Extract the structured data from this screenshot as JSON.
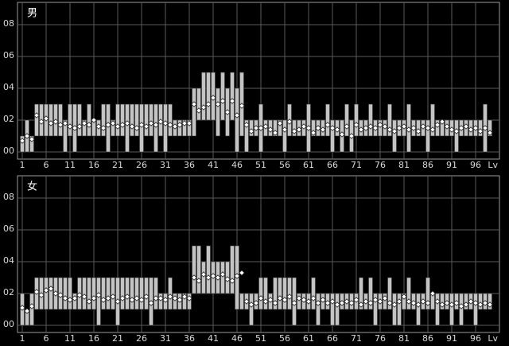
{
  "chart_data": [
    {
      "type": "range",
      "title": "男",
      "x_label": "Lv",
      "bar_color": "#c4c4c4",
      "marker_color": "#ffffff",
      "grid": true,
      "xlim": [
        0,
        101
      ],
      "xticks": [
        1,
        6,
        11,
        16,
        21,
        26,
        31,
        36,
        41,
        46,
        51,
        56,
        61,
        66,
        71,
        76,
        81,
        86,
        91,
        96
      ],
      "ylim": [
        0,
        9
      ],
      "yticks": [
        {
          "value": 0,
          "label": "00"
        },
        {
          "value": 2,
          "label": "02"
        },
        {
          "value": 4,
          "label": "04"
        },
        {
          "value": 6,
          "label": "06"
        },
        {
          "value": 8,
          "label": "08"
        }
      ],
      "x": [
        1,
        2,
        3,
        4,
        5,
        6,
        7,
        8,
        9,
        10,
        11,
        12,
        13,
        14,
        15,
        16,
        17,
        18,
        19,
        20,
        21,
        22,
        23,
        24,
        25,
        26,
        27,
        28,
        29,
        30,
        31,
        32,
        33,
        34,
        35,
        36,
        37,
        38,
        39,
        40,
        41,
        42,
        43,
        44,
        45,
        46,
        47,
        48,
        49,
        50,
        51,
        52,
        53,
        54,
        55,
        56,
        57,
        58,
        59,
        60,
        61,
        62,
        63,
        64,
        65,
        66,
        67,
        68,
        69,
        70,
        71,
        72,
        73,
        74,
        75,
        76,
        77,
        78,
        79,
        80,
        81,
        82,
        83,
        84,
        85,
        86,
        87,
        88,
        89,
        90,
        91,
        92,
        93,
        94,
        95,
        96,
        97,
        98,
        99
      ],
      "low": [
        0,
        0,
        0,
        1,
        1,
        1,
        1,
        1,
        1,
        0,
        1,
        0,
        1,
        1,
        1,
        1,
        1,
        1,
        0,
        1,
        1,
        1,
        0,
        1,
        1,
        0,
        1,
        1,
        0,
        1,
        0,
        1,
        1,
        1,
        1,
        1,
        1,
        2,
        2,
        2,
        2,
        1,
        2,
        1,
        2,
        0,
        1,
        0,
        1,
        1,
        0,
        1,
        1,
        1,
        1,
        0,
        1,
        1,
        1,
        1,
        0,
        1,
        1,
        1,
        1,
        0,
        1,
        0,
        1,
        0,
        1,
        1,
        1,
        1,
        1,
        1,
        1,
        1,
        0,
        1,
        1,
        0,
        1,
        1,
        1,
        0,
        1,
        1,
        1,
        1,
        1,
        0,
        1,
        1,
        1,
        1,
        1,
        0,
        1
      ],
      "high": [
        1,
        2,
        1,
        3,
        3,
        3,
        3,
        3,
        3,
        2,
        3,
        3,
        3,
        2,
        3,
        2,
        2,
        3,
        3,
        2,
        3,
        3,
        3,
        3,
        3,
        3,
        3,
        3,
        3,
        3,
        3,
        3,
        2,
        2,
        2,
        2,
        4,
        4,
        5,
        5,
        5,
        4,
        5,
        4,
        5,
        4,
        5,
        2,
        2,
        2,
        3,
        2,
        2,
        2,
        2,
        2,
        3,
        2,
        2,
        2,
        3,
        2,
        2,
        2,
        3,
        2,
        2,
        2,
        3,
        2,
        3,
        2,
        2,
        3,
        2,
        2,
        2,
        3,
        2,
        2,
        2,
        3,
        2,
        2,
        2,
        2,
        3,
        2,
        2,
        2,
        2,
        2,
        2,
        2,
        2,
        2,
        2,
        3,
        2
      ],
      "values": [
        0.7,
        1,
        0.8,
        2.3,
        1.9,
        2.1,
        1.8,
        1.9,
        1.7,
        1.8,
        1.6,
        1.5,
        1.6,
        1.8,
        1.7,
        2.0,
        1.6,
        1.5,
        1.7,
        1.8,
        1.6,
        1.7,
        1.8,
        1.6,
        1.5,
        1.7,
        1.6,
        1.8,
        1.7,
        1.9,
        1.8,
        1.7,
        1.6,
        1.7,
        1.8,
        1.8,
        3.0,
        2.6,
        2.8,
        3.0,
        3.4,
        3.0,
        3.2,
        2.5,
        3.2,
        2.3,
        2.9,
        1.7,
        1.3,
        1.5,
        1.5,
        1.6,
        1.4,
        1.2,
        1.8,
        1.4,
        1.9,
        1.3,
        1.4,
        1.6,
        1.5,
        1.2,
        1.5,
        1.4,
        1.7,
        1.5,
        1.4,
        1.1,
        1.6,
        1.0,
        1.7,
        1.4,
        1.5,
        1.6,
        1.5,
        1.7,
        1.6,
        1.4,
        1.3,
        1.5,
        1.6,
        1.4,
        1.5,
        1.3,
        1.6,
        1.5,
        1.4,
        1.7,
        1.9,
        1.6,
        1.4,
        1.3,
        1.5,
        1.6,
        1.4,
        1.5,
        1.3,
        1.5,
        1.2
      ]
    },
    {
      "type": "range",
      "title": "女",
      "x_label": "Lv",
      "bar_color": "#c4c4c4",
      "marker_color": "#ffffff",
      "grid": true,
      "xlim": [
        0,
        101
      ],
      "xticks": [
        1,
        6,
        11,
        16,
        21,
        26,
        31,
        36,
        41,
        46,
        51,
        56,
        61,
        66,
        71,
        76,
        81,
        86,
        91,
        96
      ],
      "ylim": [
        0,
        9
      ],
      "yticks": [
        {
          "value": 0,
          "label": "00"
        },
        {
          "value": 2,
          "label": "02"
        },
        {
          "value": 4,
          "label": "04"
        },
        {
          "value": 6,
          "label": "06"
        },
        {
          "value": 8,
          "label": "08"
        }
      ],
      "x": [
        1,
        2,
        3,
        4,
        5,
        6,
        7,
        8,
        9,
        10,
        11,
        12,
        13,
        14,
        15,
        16,
        17,
        18,
        19,
        20,
        21,
        22,
        23,
        24,
        25,
        26,
        27,
        28,
        29,
        30,
        31,
        32,
        33,
        34,
        35,
        36,
        37,
        38,
        39,
        40,
        41,
        42,
        43,
        44,
        45,
        46,
        47,
        48,
        49,
        50,
        51,
        52,
        53,
        54,
        55,
        56,
        57,
        58,
        59,
        60,
        61,
        62,
        63,
        64,
        65,
        66,
        67,
        68,
        69,
        70,
        71,
        72,
        73,
        74,
        75,
        76,
        77,
        78,
        79,
        80,
        81,
        82,
        83,
        84,
        85,
        86,
        87,
        88,
        89,
        90,
        91,
        92,
        93,
        94,
        95,
        96,
        97,
        98,
        99
      ],
      "low": [
        0,
        0,
        0,
        1,
        1,
        1,
        1,
        1,
        1,
        1,
        1,
        1,
        1,
        1,
        1,
        1,
        0,
        1,
        1,
        1,
        0,
        1,
        1,
        1,
        1,
        1,
        1,
        0,
        1,
        1,
        1,
        1,
        1,
        1,
        1,
        1,
        2,
        2,
        2,
        2,
        2,
        2,
        2,
        2,
        2,
        1,
        1,
        1,
        0,
        1,
        1,
        1,
        1,
        1,
        1,
        1,
        1,
        0,
        1,
        1,
        1,
        1,
        0,
        1,
        1,
        0,
        0,
        1,
        1,
        1,
        1,
        1,
        1,
        1,
        0,
        1,
        1,
        1,
        0,
        0,
        1,
        1,
        1,
        0,
        1,
        1,
        1,
        0,
        1,
        1,
        0,
        1,
        0,
        1,
        1,
        0,
        1,
        1,
        1
      ],
      "high": [
        2,
        1,
        2,
        3,
        3,
        3,
        3,
        3,
        3,
        3,
        3,
        2,
        3,
        3,
        3,
        3,
        3,
        3,
        3,
        3,
        3,
        3,
        3,
        3,
        3,
        3,
        3,
        3,
        3,
        2,
        2,
        3,
        2,
        2,
        2,
        2,
        5,
        5,
        4,
        5,
        4,
        4,
        4,
        4,
        5,
        5,
        2,
        2,
        2,
        2,
        3,
        3,
        2,
        3,
        3,
        3,
        3,
        3,
        2,
        2,
        2,
        3,
        2,
        2,
        2,
        2,
        2,
        2,
        2,
        2,
        2,
        3,
        2,
        3,
        2,
        2,
        2,
        3,
        2,
        2,
        2,
        3,
        2,
        2,
        2,
        3,
        2,
        2,
        2,
        2,
        2,
        2,
        2,
        2,
        2,
        2,
        2,
        2,
        2
      ],
      "values": [
        1.1,
        0.9,
        1.2,
        2.1,
        1.9,
        2.2,
        2.3,
        2.0,
        1.9,
        1.7,
        1.6,
        1.7,
        1.9,
        1.8,
        1.5,
        1.7,
        1.9,
        1.6,
        1.7,
        1.8,
        1.5,
        1.7,
        1.8,
        1.6,
        1.7,
        1.6,
        1.8,
        1.4,
        1.7,
        1.7,
        1.6,
        1.8,
        1.7,
        1.6,
        1.8,
        1.7,
        3.0,
        2.8,
        3.2,
        3.0,
        3.1,
        3.0,
        3.2,
        2.9,
        2.8,
        3.1,
        3.3,
        1.5,
        1.3,
        1.4,
        1.7,
        1.5,
        1.6,
        1.4,
        1.7,
        1.6,
        1.8,
        1.4,
        1.7,
        1.6,
        1.5,
        1.7,
        1.4,
        1.6,
        1.4,
        1.5,
        1.3,
        1.4,
        1.5,
        1.4,
        1.6,
        1.3,
        1.5,
        1.4,
        1.6,
        1.5,
        1.7,
        1.4,
        1.3,
        1.5,
        1.8,
        1.5,
        1.4,
        1.3,
        1.5,
        1.4,
        2.0,
        1.5,
        1.3,
        1.4,
        1.3,
        1.4,
        1.2,
        1.3,
        1.5,
        1.4,
        1.3,
        1.4,
        1.3
      ]
    }
  ]
}
